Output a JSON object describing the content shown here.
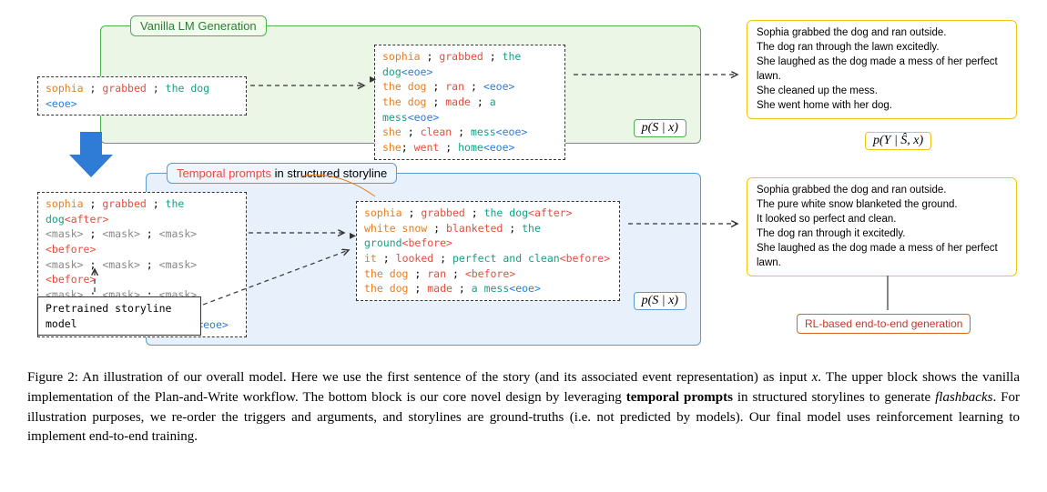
{
  "top_tab": "Vanilla LM Generation",
  "bottom_tab_html": "<span class='red'>Temporal prompts</span> in structured storyline",
  "green_input_html": "<span class='orange'>sophia</span> <span class='black'>;</span> <span class='red'>grabbed</span> <span class='black'>;</span> <span class='teal'>the dog</span> <span class='blue'>&lt;eoe&gt;</span>",
  "green_storyline_html": [
    "<span class='orange'>sophia</span> ; <span class='red'>grabbed</span> ; <span class='teal'>the dog</span><span class='blue'>&lt;eoe&gt;</span>",
    "<span class='orange'>the dog</span> ; <span class='red'>ran</span> ; <span class='blue'>&lt;eoe&gt;</span>",
    "<span class='orange'>the dog</span> ; <span class='red'>made</span> ; <span class='teal'>a mess</span><span class='blue'>&lt;eoe&gt;</span>",
    "<span class='orange'>she</span> ; <span class='red'>clean</span> ; <span class='teal'>mess</span><span class='blue'>&lt;eoe&gt;</span>",
    "<span class='orange'>she</span>; <span class='red'>went</span> ; <span class='teal'>home</span><span class='blue'>&lt;eoe&gt;</span>"
  ],
  "story_top": [
    "Sophia grabbed the dog and ran outside.",
    "The dog ran through the lawn excitedly.",
    "She laughed as the dog made a mess of her perfect lawn.",
    "She cleaned up the mess.",
    "She went home with her dog."
  ],
  "blue_input_html": [
    "<span class='orange'>sophia</span> ; <span class='red'>grabbed</span> ; <span class='teal'>the dog</span><span class='red'>&lt;after&gt;</span>",
    "<span class='gray'>&lt;mask&gt;</span> ; <span class='gray'>&lt;mask&gt;</span> ; <span class='gray'>&lt;mask&gt;</span><span class='red'>&lt;before&gt;</span>",
    "<span class='gray'>&lt;mask&gt;</span> ; <span class='gray'>&lt;mask&gt;</span> ; <span class='gray'>&lt;mask&gt;</span><span class='red'>&lt;before&gt;</span>",
    "<span class='gray'>&lt;mask&gt;</span> ; <span class='gray'>&lt;mask&gt;</span> ; <span class='gray'>&lt;mask&gt;</span><span class='red'>&lt;before&gt;</span>",
    "<span class='gray'>&lt;mask&gt;</span> ; <span class='gray'>&lt;mask&gt;</span> ; <span class='gray'>&lt;mask&gt;</span><span class='blue'>&lt;eoe&gt;</span>"
  ],
  "blue_storyline_html": [
    "<span class='orange'>sophia</span> ; <span class='red'>grabbed</span> ; <span class='teal'>the dog</span><span class='red'>&lt;after&gt;</span>",
    "<span class='orange'>white snow</span> ; <span class='red'>blanketed</span> ; <span class='teal'>the ground</span><span class='red'>&lt;before&gt;</span>",
    "<span class='orange'>it</span> ; <span class='red'>looked</span> ; <span class='teal'>perfect and clean</span><span class='red'>&lt;before&gt;</span>",
    "<span class='orange'>the dog</span> ; <span class='red'>ran</span> ; <span class='red'>&lt;before&gt;</span>",
    "<span class='orange'>the dog</span> ; <span class='red'>made</span> ; <span class='teal'>a mess</span><span class='blue'>&lt;eoe&gt;</span>"
  ],
  "pretrained_label": "Pretrained storyline model",
  "story_bottom": [
    "Sophia grabbed the dog and ran outside.",
    "The pure white snow blanketed the ground.",
    "It looked so perfect and clean.",
    "The dog ran through it excitedly.",
    "She laughed as the dog made a mess of her perfect lawn."
  ],
  "rl_label": "RL-based end-to-end generation",
  "prob_sx": "p(S | x)",
  "prob_ysx": "p(Y | Ŝ, x)",
  "caption_html": "Figure 2: An illustration of our overall model. Here we use the first sentence of the story (and its associated event representation) as input <i>x</i>. The upper block shows the vanilla implementation of the Plan-and-Write workflow. The bottom block is our core novel design by leveraging <b>temporal prompts</b> in structured storylines to generate <i>flashbacks</i>. For illustration purposes, we re-order the triggers and arguments, and storylines are ground-truths (i.e. not predicted by models). Our final model uses reinforcement learning to implement end-to-end training.",
  "colors": {
    "green_border": "#4caf50",
    "green_bg": "#ecf6e6",
    "blue_border": "#5a9bd5",
    "blue_bg": "#e7f0fb",
    "yellow_border": "#f1c40f",
    "orange_border": "#d2691e"
  }
}
